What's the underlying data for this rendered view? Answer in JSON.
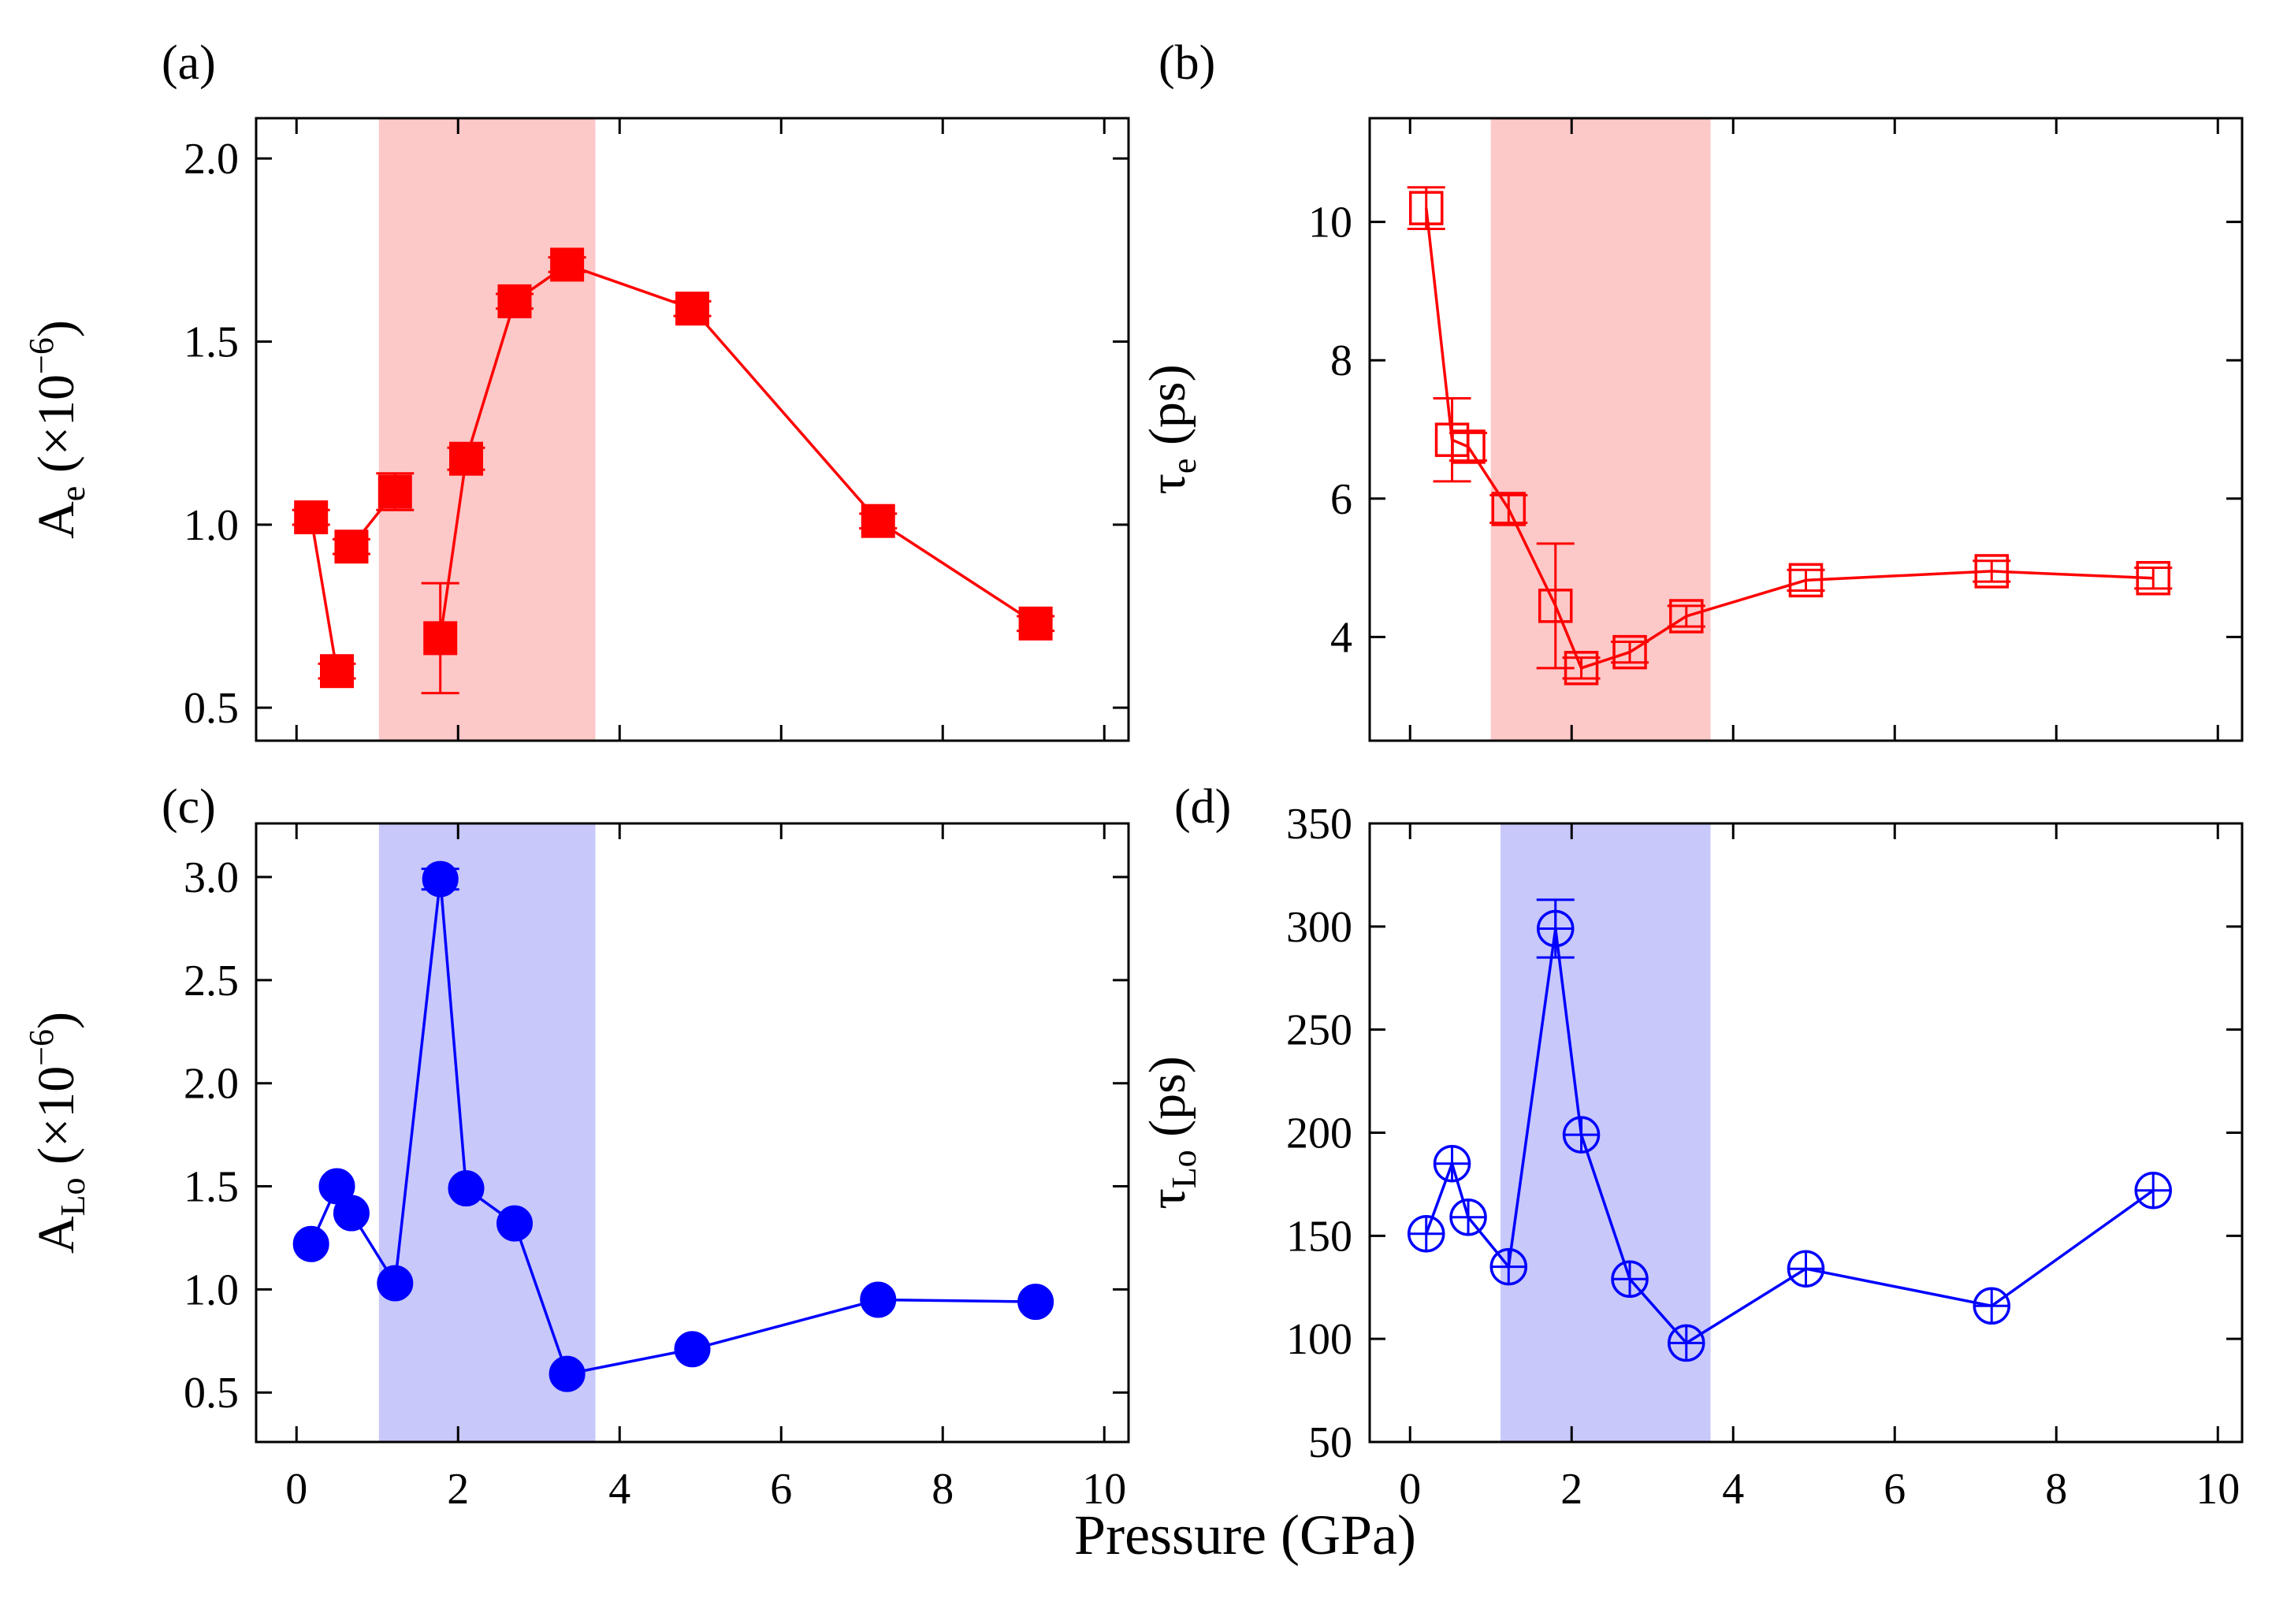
{
  "figure": {
    "xlabel": "Pressure (GPa)"
  },
  "chart_data": [
    {
      "type": "line",
      "panel": "(a)",
      "title": "",
      "xlabel": "",
      "ylabel": "Ae (×10⁻⁶)",
      "ylabel_parts": {
        "main": "A",
        "sub": "e",
        "rest": " (×10",
        "sup": "−6",
        "end": ")"
      },
      "xlim": [
        -0.5,
        10.3
      ],
      "ylim": [
        0.41,
        2.11
      ],
      "xticks": [
        0,
        2,
        4,
        6,
        8,
        10
      ],
      "xtick_labels": [
        "",
        "",
        "",
        "",
        "",
        ""
      ],
      "yticks": [
        0.5,
        1.0,
        1.5,
        2.0
      ],
      "ytick_labels": [
        "0.5",
        "1.0",
        "1.5",
        "2.0"
      ],
      "shade": {
        "from": 1.02,
        "to": 3.7,
        "color": "#fdc8c8"
      },
      "series": [
        {
          "name": "A_e",
          "color": "#ff0000",
          "marker": "square-filled",
          "segments": [
            [
              0,
              1
            ],
            [
              2,
              3
            ],
            [
              4,
              5,
              6,
              7,
              8,
              9,
              10
            ]
          ],
          "x": [
            0.18,
            0.5,
            0.68,
            1.22,
            1.78,
            2.1,
            2.7,
            3.35,
            4.9,
            7.2,
            9.15
          ],
          "y": [
            1.02,
            0.6,
            0.94,
            1.09,
            0.69,
            1.18,
            1.61,
            1.71,
            1.59,
            1.01,
            0.73
          ],
          "err": [
            0.02,
            0.02,
            0.02,
            0.05,
            0.15,
            0.03,
            0.02,
            0.02,
            0.02,
            0.02,
            0.02
          ],
          "xerr": [
            0,
            0,
            0,
            0,
            0,
            0,
            0,
            0,
            0,
            0,
            0.1
          ]
        }
      ]
    },
    {
      "type": "line",
      "panel": "(b)",
      "title": "",
      "xlabel": "",
      "ylabel": "τe (ps)",
      "ylabel_parts": {
        "main": "τ",
        "sub": "e",
        "rest": " (ps)",
        "sup": "",
        "end": ""
      },
      "xlim": [
        -0.5,
        10.3
      ],
      "ylim": [
        2.5,
        11.5
      ],
      "xticks": [
        0,
        2,
        4,
        6,
        8,
        10
      ],
      "xtick_labels": [
        "",
        "",
        "",
        "",
        "",
        ""
      ],
      "yticks": [
        4,
        6,
        8,
        10
      ],
      "ytick_labels": [
        "4",
        "6",
        "8",
        "10"
      ],
      "shade": {
        "from": 1.0,
        "to": 3.72,
        "color": "#fdc8c8"
      },
      "series": [
        {
          "name": "tau_e",
          "color": "#ff0000",
          "marker": "square-open",
          "segments": [
            [
              0,
              1,
              2,
              3,
              4,
              5,
              6,
              7,
              8,
              9,
              10
            ]
          ],
          "x": [
            0.2,
            0.52,
            0.72,
            1.22,
            1.8,
            2.12,
            2.72,
            3.42,
            4.9,
            7.2,
            9.2
          ],
          "y": [
            10.2,
            6.85,
            6.75,
            5.85,
            4.45,
            3.55,
            3.78,
            4.3,
            4.82,
            4.95,
            4.85
          ],
          "err": [
            0.3,
            0.6,
            0.2,
            0.2,
            0.9,
            0.15,
            0.15,
            0.15,
            0.15,
            0.15,
            0.15
          ],
          "xerr": [
            0,
            0,
            0,
            0,
            0,
            0,
            0,
            0,
            0,
            0,
            0
          ]
        }
      ]
    },
    {
      "type": "line",
      "panel": "(c)",
      "title": "",
      "xlabel": "",
      "ylabel": "ALo (×10⁻⁶)",
      "ylabel_parts": {
        "main": "A",
        "sub": "Lo",
        "rest": " (×10",
        "sup": "−6",
        "end": ")"
      },
      "xlim": [
        -0.5,
        10.3
      ],
      "ylim": [
        0.26,
        3.26
      ],
      "xticks": [
        0,
        2,
        4,
        6,
        8,
        10
      ],
      "xtick_labels": [
        "0",
        "2",
        "4",
        "6",
        "8",
        "10"
      ],
      "yticks": [
        0.5,
        1.0,
        1.5,
        2.0,
        2.5,
        3.0
      ],
      "ytick_labels": [
        "0.5",
        "1.0",
        "1.5",
        "2.0",
        "2.5",
        "3.0"
      ],
      "shade": {
        "from": 1.02,
        "to": 3.7,
        "color": "#c8c8fb"
      },
      "series": [
        {
          "name": "A_Lo",
          "color": "#0000ff",
          "marker": "circle-filled",
          "segments": [
            [
              0,
              1,
              2,
              3,
              4,
              5,
              6,
              7,
              8,
              9,
              10
            ]
          ],
          "x": [
            0.18,
            0.5,
            0.68,
            1.22,
            1.78,
            2.1,
            2.7,
            3.35,
            4.9,
            7.2,
            9.15
          ],
          "y": [
            1.22,
            1.5,
            1.37,
            1.03,
            2.99,
            1.49,
            1.32,
            0.59,
            0.71,
            0.95,
            0.94
          ],
          "err": [
            0,
            0,
            0,
            0,
            0.05,
            0,
            0,
            0,
            0,
            0,
            0
          ],
          "xerr": [
            0,
            0,
            0,
            0,
            0,
            0,
            0,
            0,
            0,
            0,
            0
          ]
        }
      ]
    },
    {
      "type": "line",
      "panel": "(d)",
      "title": "",
      "xlabel": "",
      "ylabel": "τLo (ps)",
      "ylabel_parts": {
        "main": "τ",
        "sub": "Lo",
        "rest": " (ps)",
        "sup": "",
        "end": ""
      },
      "xlim": [
        -0.5,
        10.3
      ],
      "ylim": [
        50,
        350
      ],
      "xticks": [
        0,
        2,
        4,
        6,
        8,
        10
      ],
      "xtick_labels": [
        "0",
        "2",
        "4",
        "6",
        "8",
        "10"
      ],
      "yticks": [
        50,
        100,
        150,
        200,
        250,
        300,
        350
      ],
      "ytick_labels": [
        "50",
        "100",
        "150",
        "200",
        "250",
        "300",
        "350"
      ],
      "shade": {
        "from": 1.12,
        "to": 3.72,
        "color": "#c8c8fb"
      },
      "series": [
        {
          "name": "tau_Lo",
          "color": "#0000ff",
          "marker": "circle-open-cross",
          "segments": [
            [
              0,
              1,
              2,
              3,
              4,
              5,
              6,
              7,
              8,
              9,
              10
            ]
          ],
          "x": [
            0.2,
            0.52,
            0.72,
            1.22,
            1.8,
            2.12,
            2.72,
            3.42,
            4.9,
            7.2,
            9.2
          ],
          "y": [
            151,
            185,
            159,
            135,
            299,
            199,
            129,
            98,
            134,
            116,
            172
          ],
          "err": [
            0,
            0,
            0,
            0,
            14,
            0,
            0,
            0,
            0,
            0,
            0
          ],
          "xerr": [
            0,
            0,
            0,
            0,
            0,
            0,
            0,
            0,
            0,
            0,
            0
          ]
        }
      ]
    }
  ]
}
